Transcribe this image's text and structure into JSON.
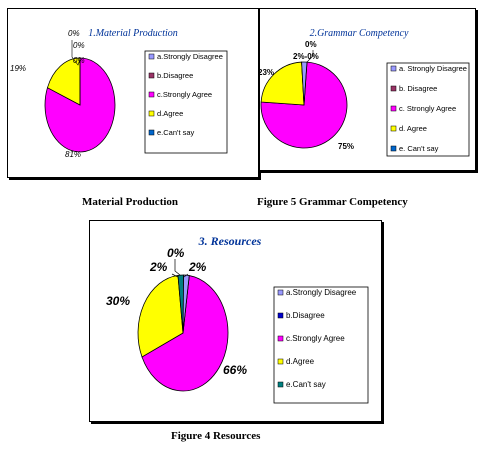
{
  "chart_data": [
    {
      "type": "pie",
      "title": "1.Material Production",
      "categories": [
        "a.Strongly  Disagree",
        "b.Disagree",
        "c.Strongly Agree",
        "d.Agree",
        "e.Can't say"
      ],
      "values": [
        0,
        0,
        81,
        19,
        0
      ],
      "data_labels": [
        "0%",
        "0%",
        "81%",
        "19%",
        "0%"
      ],
      "colors": [
        "#9999ff",
        "#993366",
        "#ff00ff",
        "#ffff00",
        "#0066cc"
      ],
      "legend_position": "right"
    },
    {
      "type": "pie",
      "title": "2.Grammar Competency",
      "categories": [
        "a. Strongly  Disagree",
        "b. Disagree",
        "c. Strongly  Agree",
        "d. Agree",
        "e. Can't say"
      ],
      "values": [
        2,
        0,
        75,
        23,
        0
      ],
      "data_labels": [
        "2%",
        "0%",
        "75%",
        "23%",
        "0%"
      ],
      "top_labels": [
        "0%",
        "2%-0%"
      ],
      "colors": [
        "#9999ff",
        "#993366",
        "#ff00ff",
        "#ffff00",
        "#0066cc"
      ],
      "legend_position": "right"
    },
    {
      "type": "pie",
      "title": "3. Resources",
      "categories": [
        "a.Strongly Disagree",
        "b.Disagree",
        "c.Strongly Agree",
        "d.Agree",
        "e.Can't say"
      ],
      "values": [
        2,
        0,
        66,
        30,
        2
      ],
      "data_labels": [
        "2%",
        "0%",
        "66%",
        "30%",
        "2%"
      ],
      "colors": [
        "#9999ff",
        "#0000cc",
        "#ff00ff",
        "#ffff00",
        "#008080"
      ],
      "legend_position": "right"
    }
  ],
  "captions": [
    "Material Production",
    "Figure 5 Grammar Competency",
    "Figure 4 Resources"
  ]
}
